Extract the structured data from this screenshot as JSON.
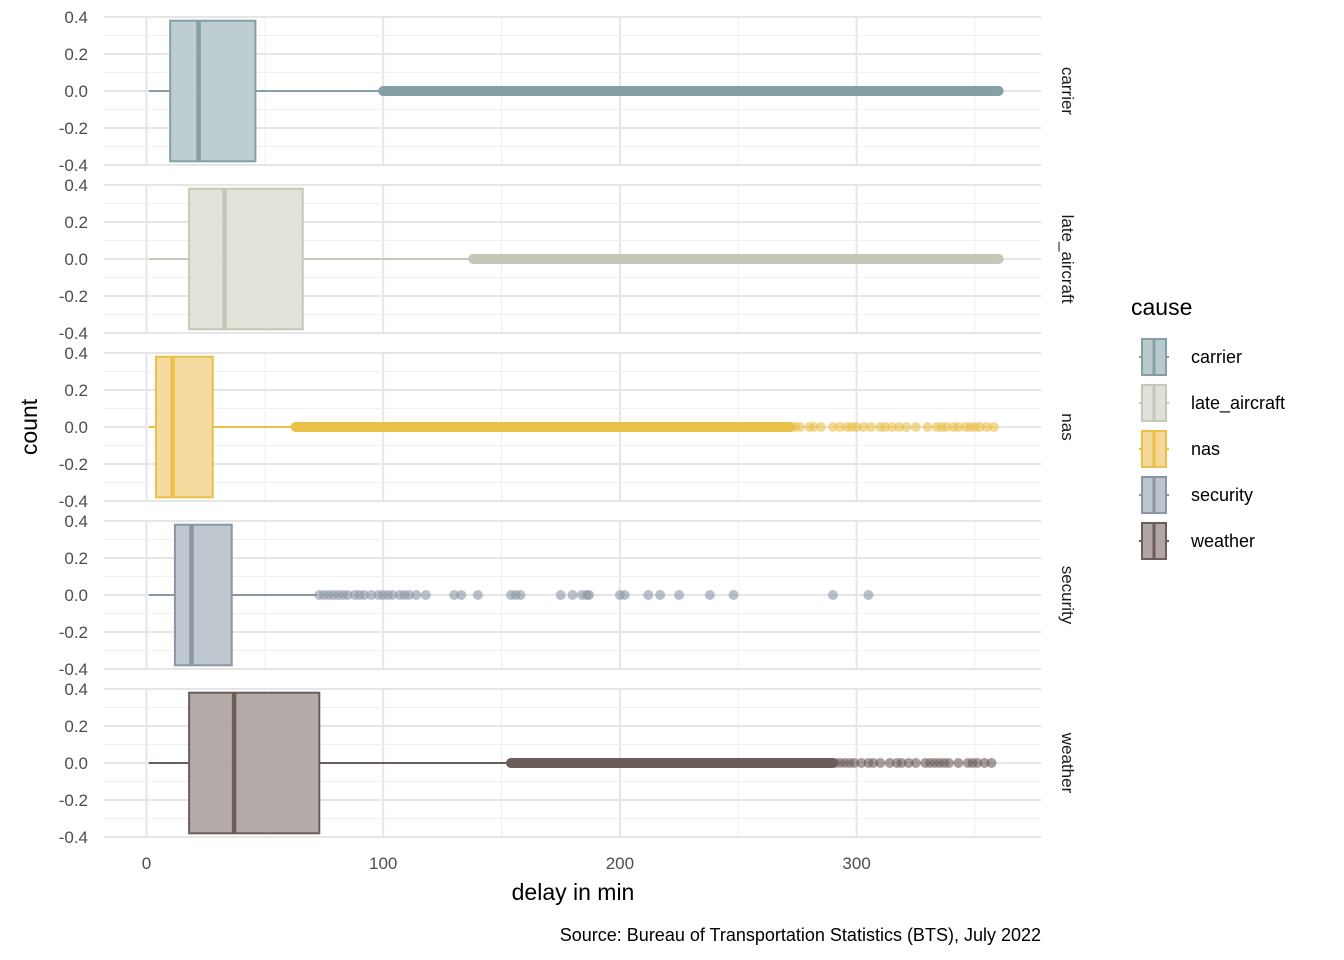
{
  "chart_data": {
    "type": "boxplot",
    "facet_by": "cause",
    "xlabel": "delay in min",
    "ylabel": "count",
    "caption": "Source: Bureau of Transportation Statistics (BTS), July 2022",
    "xlim": [
      -15,
      380
    ],
    "x_ticks": [
      0,
      100,
      200,
      300
    ],
    "x_tick_labels": [
      "0",
      "100",
      "200",
      "300"
    ],
    "ylim": [
      -0.4,
      0.4
    ],
    "y_ticks": [
      0.4,
      0.2,
      0.0,
      -0.2,
      -0.4
    ],
    "y_tick_labels": [
      "0.4",
      "0.2",
      "0.0",
      "-0.2",
      "-0.4"
    ],
    "grid": true,
    "legend": {
      "title": "cause",
      "position": "right",
      "entries": [
        "carrier",
        "late_aircraft",
        "nas",
        "security",
        "weather"
      ]
    },
    "panels": [
      {
        "cause": "carrier",
        "color": "#84a0a6",
        "fill": "#b9cacd",
        "box": {
          "whisker_low": 1,
          "q1": 10,
          "median": 22,
          "q3": 46,
          "whisker_high": 100
        },
        "outliers": {
          "dense_ranges": [
            [
              100,
              360
            ]
          ],
          "points": []
        }
      },
      {
        "cause": "late_aircraft",
        "color": "#c5c8b6",
        "fill": "#e0e2d9",
        "box": {
          "whisker_low": 1,
          "q1": 18,
          "median": 33,
          "q3": 66,
          "whisker_high": 138
        },
        "outliers": {
          "dense_ranges": [
            [
              138,
              360
            ]
          ],
          "points": []
        }
      },
      {
        "cause": "nas",
        "color": "#ebc049",
        "fill": "#f4d99a",
        "box": {
          "whisker_low": 1,
          "q1": 4,
          "median": 11,
          "q3": 28,
          "whisker_high": 63
        },
        "outliers": {
          "dense_ranges": [
            [
              63,
              272
            ]
          ],
          "points": [
            274,
            276,
            280,
            282,
            285,
            290,
            293,
            296,
            298,
            300,
            303,
            306,
            310,
            312,
            315,
            318,
            321,
            325,
            330,
            334,
            336,
            338,
            341,
            343,
            346,
            348,
            350,
            352,
            355,
            358
          ]
        }
      },
      {
        "cause": "security",
        "color": "#8a96a5",
        "fill": "#bcc4cc",
        "box": {
          "whisker_low": 1,
          "q1": 12,
          "median": 19,
          "q3": 36,
          "whisker_high": 72
        },
        "outliers": {
          "dense_ranges": [],
          "points": [
            73,
            75,
            77,
            79,
            81,
            83,
            85,
            88,
            90,
            92,
            95,
            98,
            100,
            102,
            104,
            107,
            109,
            111,
            114,
            118,
            130,
            133,
            140,
            154,
            156,
            158,
            175,
            180,
            184,
            186,
            187,
            200,
            202,
            212,
            217,
            225,
            238,
            248,
            290,
            305
          ]
        }
      },
      {
        "cause": "weather",
        "color": "#6b5d5a",
        "fill": "#b0a6a4",
        "box": {
          "whisker_low": 1,
          "q1": 18,
          "median": 37,
          "q3": 73,
          "whisker_high": 154
        },
        "outliers": {
          "dense_ranges": [
            [
              154,
              290
            ]
          ],
          "points": [
            291,
            293,
            295,
            297,
            299,
            302,
            305,
            307,
            310,
            314,
            317,
            319,
            322,
            325,
            329,
            331,
            333,
            335,
            337,
            339,
            343,
            347,
            349,
            351,
            354,
            357
          ]
        }
      }
    ]
  }
}
